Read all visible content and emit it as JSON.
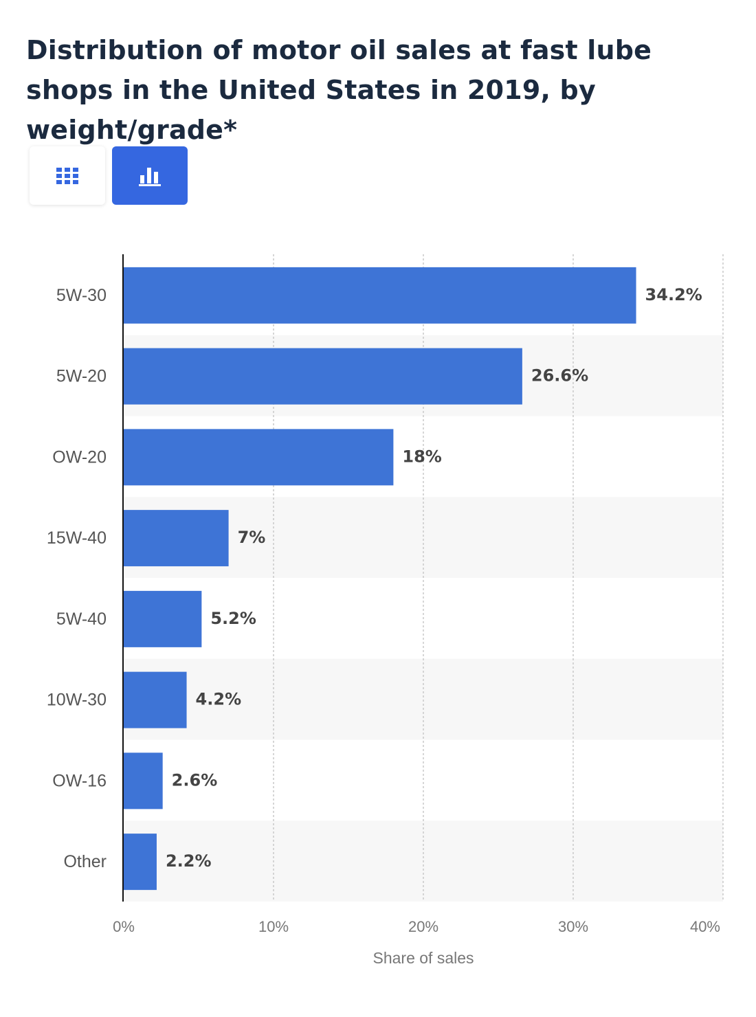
{
  "title": "Distribution of motor oil sales at fast lube shops in the United States in 2019, by weight/grade*",
  "view_toggle": {
    "table_icon": "grid-icon",
    "chart_icon": "bar-chart-icon",
    "active": "chart"
  },
  "colors": {
    "bar": "#3e74d6",
    "accent": "#3567e0",
    "title": "#1b2a3f",
    "label": "#444444",
    "axis_text": "#777777",
    "band": "#f7f7f7"
  },
  "chart_data": {
    "type": "bar",
    "orientation": "horizontal",
    "categories": [
      "5W-30",
      "5W-20",
      "OW-20",
      "15W-40",
      "5W-40",
      "10W-30",
      "OW-16",
      "Other"
    ],
    "values": [
      34.2,
      26.6,
      18,
      7,
      5.2,
      4.2,
      2.6,
      2.2
    ],
    "value_labels": [
      "34.2%",
      "26.6%",
      "18%",
      "7%",
      "5.2%",
      "4.2%",
      "2.6%",
      "2.2%"
    ],
    "xlabel": "Share of sales",
    "ylabel": "",
    "xlim": [
      0,
      40
    ],
    "x_ticks": [
      0,
      10,
      20,
      30,
      40
    ],
    "x_tick_labels": [
      "0%",
      "10%",
      "20%",
      "30%",
      "40%"
    ],
    "grid": true
  }
}
